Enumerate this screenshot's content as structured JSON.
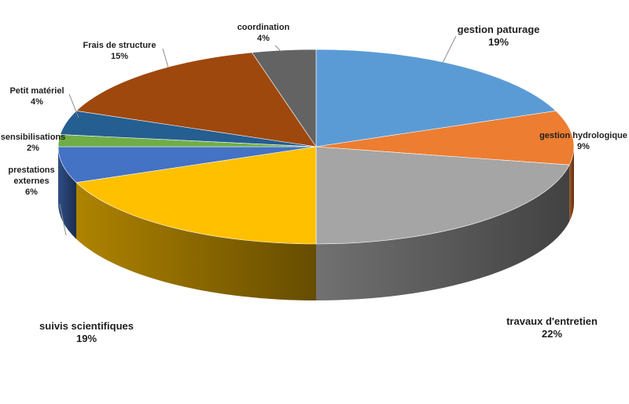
{
  "chart_data": {
    "type": "pie",
    "title": "",
    "style": "3d",
    "start": "12 o'clock",
    "direction": "clockwise",
    "slices": [
      {
        "label": "gestion paturage",
        "value": 19,
        "value_label": "19%",
        "color": "#5b9bd5"
      },
      {
        "label": "gestion hydrologique",
        "value": 9,
        "value_label": "9%",
        "color": "#ed7d31"
      },
      {
        "label": "travaux d'entretien",
        "value": 22,
        "value_label": "22%",
        "color": "#a5a5a5"
      },
      {
        "label": "suivis scientifiques",
        "value": 19,
        "value_label": "19%",
        "color": "#ffc000"
      },
      {
        "label": "prestations externes",
        "value": 6,
        "value_label": "6%",
        "color": "#4472c4"
      },
      {
        "label": "sensibilisations",
        "value": 2,
        "value_label": "2%",
        "color": "#70ad47"
      },
      {
        "label": "Petit matériel",
        "value": 4,
        "value_label": "4%",
        "color": "#255e91"
      },
      {
        "label": "Frais de structure",
        "value": 15,
        "value_label": "15%",
        "color": "#9e480e"
      },
      {
        "label": "coordination",
        "value": 4,
        "value_label": "4%",
        "color": "#636363"
      }
    ]
  }
}
